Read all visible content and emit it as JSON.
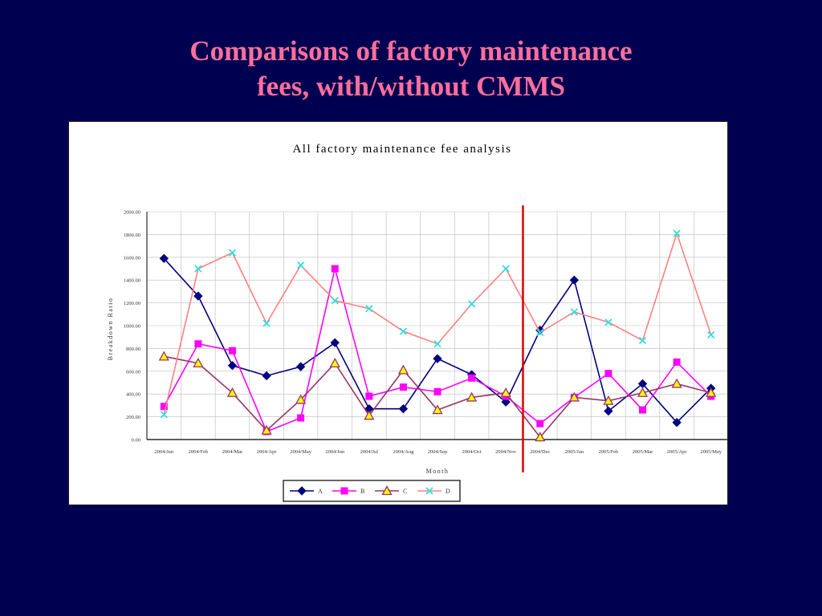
{
  "slide": {
    "title_line1": "Comparisons of factory maintenance",
    "title_line2": "fees, with/without CMMS"
  },
  "chart_data": {
    "type": "line",
    "title": "All factory maintenance fee analysis",
    "xlabel": "Month",
    "ylabel": "Breakdown Ratio",
    "ylim": [
      0,
      2000
    ],
    "yticks": [
      "0.00",
      "200.00",
      "400.00",
      "600.00",
      "800.00",
      "1000.00",
      "1200.00",
      "1400.00",
      "1600.00",
      "1800.00",
      "2000.00"
    ],
    "grid": true,
    "legend": "bottom",
    "categories": [
      "2004/Jan",
      "2004/Feb",
      "2004/Mar",
      "2004/Apr",
      "2004/May",
      "2004/Jun",
      "2004/Jul",
      "2004/Aug",
      "2004/Sep",
      "2004/Oct",
      "2004/Nov",
      "2004/Dec",
      "2005/Jan",
      "2005/Feb",
      "2005/Mar",
      "2005/Apr",
      "2005/May"
    ],
    "divider_after_category": "2004/Nov",
    "divider_color": "#e00000",
    "series": [
      {
        "name": "A",
        "color": "#000080",
        "marker": "diamond",
        "values": [
          1590,
          1260,
          650,
          560,
          640,
          850,
          270,
          270,
          710,
          570,
          330,
          960,
          1400,
          250,
          490,
          150,
          450
        ]
      },
      {
        "name": "B",
        "color": "#ff00ff",
        "marker": "square",
        "values": [
          290,
          840,
          780,
          70,
          190,
          1500,
          380,
          460,
          420,
          540,
          380,
          140,
          370,
          580,
          260,
          680,
          380
        ]
      },
      {
        "name": "C",
        "color": "#993366",
        "marker": "triangle",
        "values": [
          730,
          670,
          410,
          80,
          350,
          670,
          210,
          610,
          260,
          370,
          410,
          20,
          370,
          340,
          410,
          490,
          410
        ]
      },
      {
        "name": "D",
        "color": "#ff8080",
        "marker": "x",
        "values": [
          220,
          1500,
          1640,
          1020,
          1530,
          1220,
          1150,
          950,
          840,
          1190,
          1500,
          940,
          1120,
          1030,
          870,
          1810,
          920
        ]
      }
    ]
  }
}
